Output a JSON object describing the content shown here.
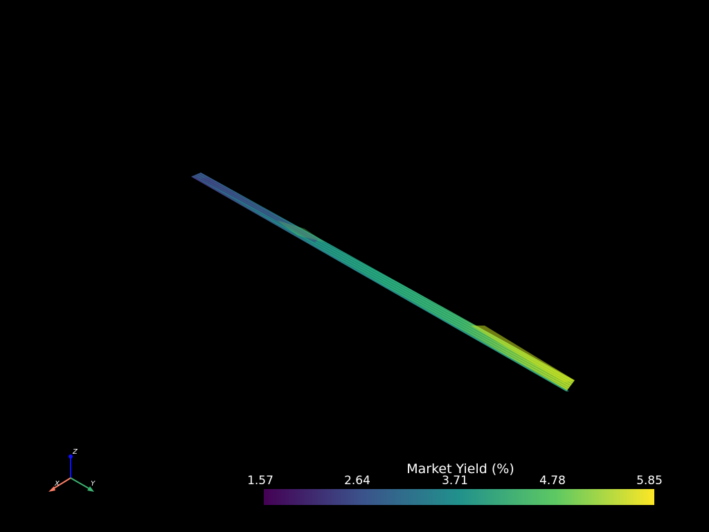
{
  "scene": {
    "background": "#000000",
    "object": "yield-surface-ribbon",
    "colormap": "viridis"
  },
  "colorbar": {
    "title": "Market Yield (%)",
    "min": 1.57,
    "max": 5.85,
    "ticks": [
      "1.57",
      "2.64",
      "3.71",
      "4.78",
      "5.85"
    ],
    "colors": [
      "#440154",
      "#3b528b",
      "#21918c",
      "#5ec962",
      "#fde725"
    ]
  },
  "axes": {
    "x_label": "X",
    "y_label": "Y",
    "z_label": "Z",
    "x_color": "#ff7f66",
    "y_color": "#3cb371",
    "z_color": "#1010ff"
  }
}
